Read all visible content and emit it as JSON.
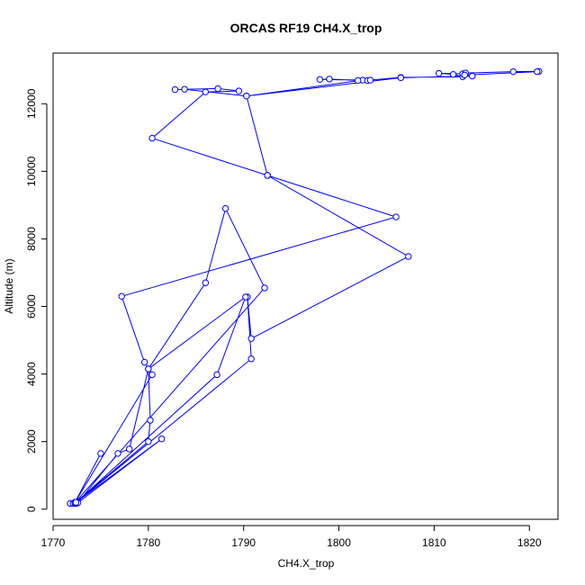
{
  "chart_data": {
    "type": "line",
    "title": "ORCAS RF19 CH4.X_trop",
    "xlabel": "CH4.X_trop",
    "ylabel": "Altitude (m)",
    "xlim": [
      1770,
      1823
    ],
    "ylim": [
      -300,
      13500
    ],
    "x_ticks": [
      1770,
      1780,
      1790,
      1800,
      1810,
      1820
    ],
    "y_ticks": [
      0,
      2000,
      4000,
      6000,
      8000,
      10000,
      12000
    ],
    "grid": false,
    "marker": "open-circle",
    "series": [
      {
        "color": "#0000ff",
        "points": [
          [
            1771.8,
            170
          ],
          [
            1772.1,
            170
          ],
          [
            1772.5,
            175
          ],
          [
            1772.3,
            200
          ],
          [
            1775.0,
            1650
          ],
          [
            1772.3,
            200
          ],
          [
            1780.4,
            3980
          ],
          [
            1779.6,
            4350
          ],
          [
            1777.2,
            6300
          ],
          [
            1806.0,
            8650
          ],
          [
            1792.5,
            9880
          ],
          [
            1780.4,
            10980
          ],
          [
            1786.0,
            12350
          ],
          [
            1789.5,
            12380
          ],
          [
            1787.3,
            12450
          ],
          [
            1782.8,
            12420
          ],
          [
            1783.8,
            12430
          ],
          [
            1790.3,
            12230
          ],
          [
            1802.5,
            12700
          ],
          [
            1798.0,
            12720
          ],
          [
            1799.0,
            12730
          ],
          [
            1802.0,
            12690
          ],
          [
            1803.0,
            12690
          ],
          [
            1803.3,
            12700
          ],
          [
            1806.5,
            12780
          ],
          [
            1813.0,
            12800
          ],
          [
            1812.0,
            12870
          ],
          [
            1810.5,
            12900
          ],
          [
            1813.0,
            12890
          ],
          [
            1813.3,
            12910
          ],
          [
            1818.3,
            12950
          ],
          [
            1821.0,
            12960
          ],
          [
            1820.8,
            12950
          ],
          [
            1813.2,
            12850
          ],
          [
            1814.0,
            12820
          ],
          [
            1806.5,
            12770
          ],
          [
            1790.3,
            12230
          ],
          [
            1792.5,
            9880
          ],
          [
            1807.3,
            7480
          ],
          [
            1790.8,
            5050
          ],
          [
            1790.4,
            6280
          ],
          [
            1790.8,
            4450
          ],
          [
            1772.3,
            170
          ],
          [
            1787.2,
            3980
          ],
          [
            1790.2,
            6280
          ],
          [
            1780.0,
            4150
          ],
          [
            1780.2,
            2630
          ],
          [
            1780.0,
            2000
          ],
          [
            1772.3,
            190
          ],
          [
            1792.2,
            6550
          ],
          [
            1788.1,
            8900
          ],
          [
            1786.0,
            6700
          ],
          [
            1780.0,
            4150
          ],
          [
            1778.0,
            1780
          ],
          [
            1776.8,
            1650
          ],
          [
            1772.6,
            190
          ],
          [
            1781.4,
            2080
          ],
          [
            1772.4,
            200
          ]
        ]
      }
    ]
  }
}
